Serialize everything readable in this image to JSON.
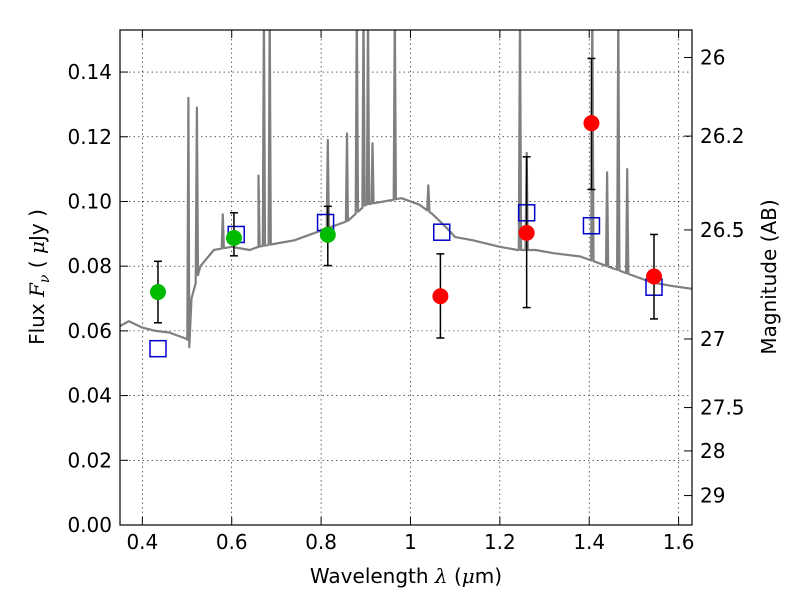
{
  "chart_data": {
    "type": "scatter",
    "xlabel": "Wavelength  λ (μm)",
    "ylabel": "Flux  F_ν  ( μJy )",
    "ylabel_right": "Magnitude (AB)",
    "xlim": [
      0.35,
      1.63
    ],
    "ylim": [
      0.0,
      0.153
    ],
    "grid": true,
    "x_ticks": [
      0.4,
      0.6,
      0.8,
      1.0,
      1.2,
      1.4,
      1.6
    ],
    "x_tick_labels": [
      "0.4",
      "0.6",
      "0.8",
      "1",
      "1.2",
      "1.4",
      "1.6"
    ],
    "y_ticks": [
      0.0,
      0.02,
      0.04,
      0.06,
      0.08,
      0.1,
      0.12,
      0.14
    ],
    "y_tick_labels": [
      "0.00",
      "0.02",
      "0.04",
      "0.06",
      "0.08",
      "0.10",
      "0.12",
      "0.14"
    ],
    "right_ticks": [
      {
        "label": "26",
        "flux": 0.1445
      },
      {
        "label": "26.2",
        "flux": 0.1202
      },
      {
        "label": "26.5",
        "flux": 0.0912
      },
      {
        "label": "27",
        "flux": 0.0575
      },
      {
        "label": "27.5",
        "flux": 0.0363
      },
      {
        "label": "28",
        "flux": 0.0229
      },
      {
        "label": "29",
        "flux": 0.0091
      }
    ],
    "series": [
      {
        "kind": "spectrum",
        "color": "#7f7f7f",
        "baseline": [
          [
            0.35,
            0.0615
          ],
          [
            0.37,
            0.063
          ],
          [
            0.4,
            0.061
          ],
          [
            0.43,
            0.06
          ],
          [
            0.46,
            0.0595
          ],
          [
            0.5,
            0.0575
          ],
          [
            0.505,
            0.055
          ],
          [
            0.51,
            0.07
          ],
          [
            0.53,
            0.08
          ],
          [
            0.56,
            0.085
          ],
          [
            0.6,
            0.086
          ],
          [
            0.64,
            0.085
          ],
          [
            0.66,
            0.086
          ],
          [
            0.7,
            0.087
          ],
          [
            0.74,
            0.088
          ],
          [
            0.78,
            0.09
          ],
          [
            0.82,
            0.092
          ],
          [
            0.86,
            0.094
          ],
          [
            0.9,
            0.099
          ],
          [
            0.94,
            0.1
          ],
          [
            0.98,
            0.101
          ],
          [
            1.02,
            0.099
          ],
          [
            1.05,
            0.096
          ],
          [
            1.08,
            0.092
          ],
          [
            1.1,
            0.089
          ],
          [
            1.14,
            0.088
          ],
          [
            1.2,
            0.086
          ],
          [
            1.24,
            0.085
          ],
          [
            1.28,
            0.085
          ],
          [
            1.32,
            0.084
          ],
          [
            1.38,
            0.083
          ],
          [
            1.42,
            0.081
          ],
          [
            1.46,
            0.079
          ],
          [
            1.5,
            0.077
          ],
          [
            1.54,
            0.075
          ],
          [
            1.58,
            0.074
          ],
          [
            1.63,
            0.073
          ]
        ],
        "emission_lines": [
          [
            0.503,
            0.132
          ],
          [
            0.522,
            0.129
          ],
          [
            0.58,
            0.096
          ],
          [
            0.66,
            0.108
          ],
          [
            0.672,
            0.16
          ],
          [
            0.685,
            0.16
          ],
          [
            0.815,
            0.119
          ],
          [
            0.858,
            0.121
          ],
          [
            0.88,
            0.16
          ],
          [
            0.895,
            0.16
          ],
          [
            0.905,
            0.16
          ],
          [
            0.915,
            0.118
          ],
          [
            0.965,
            0.16
          ],
          [
            1.04,
            0.105
          ],
          [
            1.245,
            0.16
          ],
          [
            1.26,
            0.115
          ],
          [
            1.407,
            0.16
          ],
          [
            1.44,
            0.109
          ],
          [
            1.465,
            0.16
          ],
          [
            1.485,
            0.11
          ]
        ]
      },
      {
        "kind": "model_points",
        "marker": "open-square",
        "color": "#0000cc",
        "x": [
          0.435,
          0.61,
          0.81,
          1.07,
          1.26,
          1.405,
          1.545
        ],
        "y": [
          0.0545,
          0.0898,
          0.0935,
          0.0905,
          0.0965,
          0.0925,
          0.0735
        ]
      },
      {
        "kind": "observed",
        "marker": "circle",
        "color": "#00bb00",
        "x": [
          0.435,
          0.605,
          0.815
        ],
        "y": [
          0.072,
          0.0887,
          0.0897
        ],
        "err_low": [
          0.0625,
          0.0832,
          0.0802
        ],
        "err_high": [
          0.0815,
          0.0965,
          0.0985
        ]
      },
      {
        "kind": "observed",
        "marker": "circle",
        "color": "#ff0000",
        "x": [
          1.067,
          1.26,
          1.405,
          1.545
        ],
        "y": [
          0.0707,
          0.0903,
          0.1242,
          0.0768
        ],
        "err_low": [
          0.0578,
          0.0672,
          0.1037,
          0.0637
        ],
        "err_high": [
          0.0838,
          0.1138,
          0.1442,
          0.0898
        ]
      }
    ]
  }
}
